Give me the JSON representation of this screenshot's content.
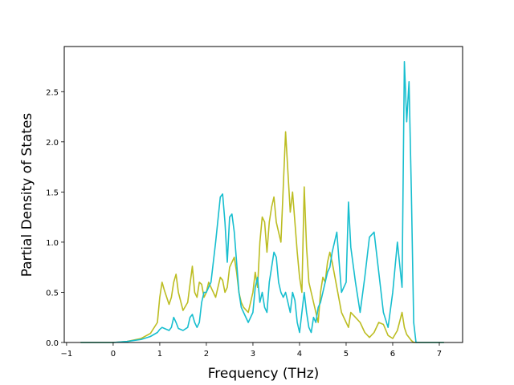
{
  "chart_data": {
    "type": "line",
    "title": "",
    "xlabel": "Frequency (THz)",
    "ylabel": "Partial Density of States",
    "xlim": [
      -1.05,
      7.5
    ],
    "ylim": [
      0.0,
      2.95
    ],
    "xticks": [
      -1,
      0,
      1,
      2,
      3,
      4,
      5,
      6,
      7
    ],
    "yticks": [
      0.0,
      0.5,
      1.0,
      1.5,
      2.0,
      2.5
    ],
    "xtick_labels": [
      "−1",
      "0",
      "1",
      "2",
      "3",
      "4",
      "5",
      "6",
      "7"
    ],
    "ytick_labels": [
      "0.0",
      "0.5",
      "1.0",
      "1.5",
      "2.0",
      "2.5"
    ],
    "grid": false,
    "legend": "none",
    "series": [
      {
        "color": "#bcbd22",
        "x": [
          -0.7,
          -0.2,
          0.0,
          0.3,
          0.6,
          0.8,
          0.95,
          1.0,
          1.05,
          1.1,
          1.2,
          1.25,
          1.3,
          1.35,
          1.4,
          1.5,
          1.6,
          1.65,
          1.7,
          1.75,
          1.8,
          1.85,
          1.9,
          1.95,
          2.0,
          2.05,
          2.1,
          2.2,
          2.3,
          2.35,
          2.4,
          2.45,
          2.5,
          2.55,
          2.6,
          2.65,
          2.7,
          2.75,
          2.8,
          2.9,
          3.0,
          3.05,
          3.1,
          3.15,
          3.2,
          3.25,
          3.3,
          3.35,
          3.4,
          3.45,
          3.5,
          3.55,
          3.6,
          3.65,
          3.7,
          3.75,
          3.8,
          3.85,
          3.9,
          3.95,
          4.0,
          4.05,
          4.1,
          4.15,
          4.2,
          4.25,
          4.3,
          4.35,
          4.4,
          4.45,
          4.5,
          4.55,
          4.6,
          4.65,
          4.7,
          4.8,
          4.9,
          5.0,
          5.05,
          5.1,
          5.2,
          5.3,
          5.4,
          5.5,
          5.6,
          5.7,
          5.8,
          5.9,
          6.0,
          6.1,
          6.2,
          6.25,
          6.3,
          6.35,
          6.4,
          6.45,
          6.5,
          6.55,
          6.6,
          7.1
        ],
        "y": [
          0.0,
          0.0,
          0.0,
          0.01,
          0.04,
          0.09,
          0.2,
          0.45,
          0.6,
          0.52,
          0.38,
          0.45,
          0.6,
          0.68,
          0.5,
          0.32,
          0.4,
          0.58,
          0.76,
          0.5,
          0.45,
          0.6,
          0.58,
          0.45,
          0.5,
          0.6,
          0.55,
          0.45,
          0.65,
          0.62,
          0.5,
          0.55,
          0.75,
          0.8,
          0.85,
          0.7,
          0.5,
          0.4,
          0.35,
          0.3,
          0.5,
          0.7,
          0.55,
          1.0,
          1.25,
          1.2,
          0.9,
          1.2,
          1.35,
          1.45,
          1.2,
          1.1,
          1.0,
          1.55,
          2.1,
          1.7,
          1.3,
          1.5,
          1.2,
          0.9,
          0.65,
          0.5,
          1.55,
          0.95,
          0.6,
          0.5,
          0.4,
          0.3,
          0.2,
          0.5,
          0.65,
          0.6,
          0.8,
          0.9,
          0.8,
          0.55,
          0.3,
          0.2,
          0.15,
          0.3,
          0.25,
          0.2,
          0.1,
          0.05,
          0.1,
          0.2,
          0.18,
          0.07,
          0.04,
          0.12,
          0.3,
          0.15,
          0.08,
          0.05,
          0.02,
          0.0,
          0.0,
          0.0,
          0.0,
          0.0
        ]
      },
      {
        "color": "#17becf",
        "x": [
          -0.7,
          -0.2,
          0.0,
          0.3,
          0.6,
          0.8,
          0.95,
          1.0,
          1.05,
          1.1,
          1.2,
          1.25,
          1.3,
          1.35,
          1.4,
          1.5,
          1.6,
          1.65,
          1.7,
          1.75,
          1.8,
          1.85,
          1.9,
          1.95,
          2.0,
          2.05,
          2.1,
          2.2,
          2.3,
          2.35,
          2.4,
          2.45,
          2.5,
          2.55,
          2.6,
          2.65,
          2.7,
          2.75,
          2.8,
          2.9,
          3.0,
          3.05,
          3.1,
          3.15,
          3.2,
          3.25,
          3.3,
          3.35,
          3.4,
          3.45,
          3.5,
          3.55,
          3.6,
          3.65,
          3.7,
          3.75,
          3.8,
          3.85,
          3.9,
          3.95,
          4.0,
          4.05,
          4.1,
          4.15,
          4.2,
          4.25,
          4.3,
          4.35,
          4.4,
          4.45,
          4.5,
          4.55,
          4.6,
          4.65,
          4.7,
          4.8,
          4.9,
          5.0,
          5.05,
          5.1,
          5.2,
          5.3,
          5.4,
          5.5,
          5.6,
          5.7,
          5.8,
          5.9,
          6.0,
          6.1,
          6.2,
          6.25,
          6.3,
          6.35,
          6.4,
          6.45,
          6.5,
          6.55,
          6.6,
          7.1
        ],
        "y": [
          0.0,
          0.0,
          0.0,
          0.01,
          0.03,
          0.06,
          0.1,
          0.13,
          0.15,
          0.14,
          0.12,
          0.15,
          0.25,
          0.2,
          0.14,
          0.12,
          0.15,
          0.25,
          0.28,
          0.2,
          0.15,
          0.2,
          0.4,
          0.5,
          0.5,
          0.55,
          0.6,
          1.0,
          1.45,
          1.48,
          1.2,
          0.8,
          1.25,
          1.28,
          1.1,
          0.8,
          0.5,
          0.35,
          0.3,
          0.2,
          0.3,
          0.55,
          0.65,
          0.4,
          0.5,
          0.35,
          0.3,
          0.6,
          0.75,
          0.9,
          0.85,
          0.6,
          0.5,
          0.45,
          0.5,
          0.4,
          0.3,
          0.5,
          0.42,
          0.2,
          0.1,
          0.3,
          0.5,
          0.3,
          0.15,
          0.1,
          0.25,
          0.2,
          0.35,
          0.4,
          0.5,
          0.6,
          0.7,
          0.75,
          0.9,
          1.1,
          0.5,
          0.6,
          1.4,
          0.95,
          0.6,
          0.3,
          0.65,
          1.05,
          1.1,
          0.7,
          0.3,
          0.15,
          0.5,
          1.0,
          0.55,
          2.8,
          2.2,
          2.6,
          1.5,
          0.2,
          0.0,
          0.0,
          0.0,
          0.0
        ]
      }
    ]
  }
}
